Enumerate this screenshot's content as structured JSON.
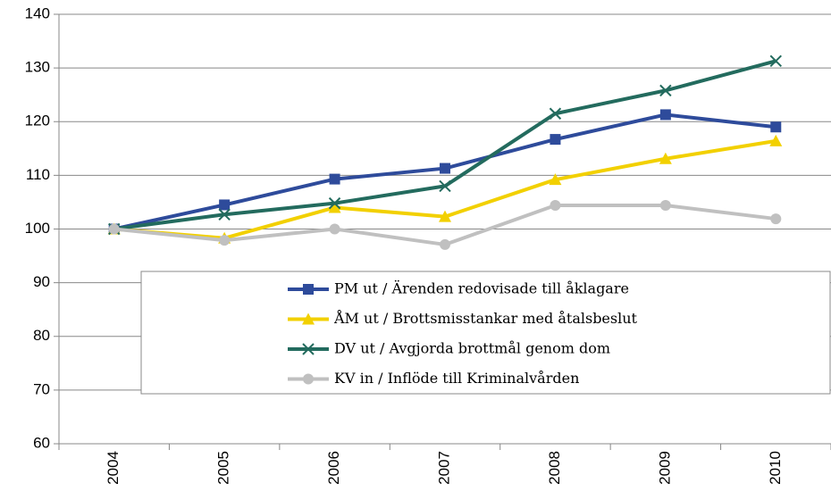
{
  "chart_data": {
    "type": "line",
    "categories": [
      "2004",
      "2005",
      "2006",
      "2007",
      "2008",
      "2009",
      "2010"
    ],
    "series": [
      {
        "name": "PM ut / Ärenden redovisade till åklagare",
        "color": "#2e4b9b",
        "marker": "square",
        "values": [
          100,
          104.5,
          109.3,
          111.3,
          116.7,
          121.3,
          119
        ]
      },
      {
        "name": "ÅM ut / Brottsmisstankar med åtalsbeslut",
        "color": "#f2d000",
        "marker": "triangle",
        "values": [
          100,
          98.3,
          104,
          102.3,
          109.2,
          113.1,
          116.4
        ]
      },
      {
        "name": "DV ut / Avgjorda brottmål genom dom",
        "color": "#236b5e",
        "marker": "x",
        "values": [
          100,
          102.7,
          104.8,
          108,
          121.5,
          125.8,
          131.3
        ]
      },
      {
        "name": "KV in / Inflöde till Kriminalvården",
        "color": "#c0c0c0",
        "marker": "circle",
        "values": [
          100,
          97.9,
          100,
          97.1,
          104.4,
          104.4,
          101.9
        ]
      }
    ],
    "ylim": [
      60,
      140
    ],
    "yticks": [
      60,
      70,
      80,
      90,
      100,
      110,
      120,
      130,
      140
    ],
    "grid": true
  }
}
